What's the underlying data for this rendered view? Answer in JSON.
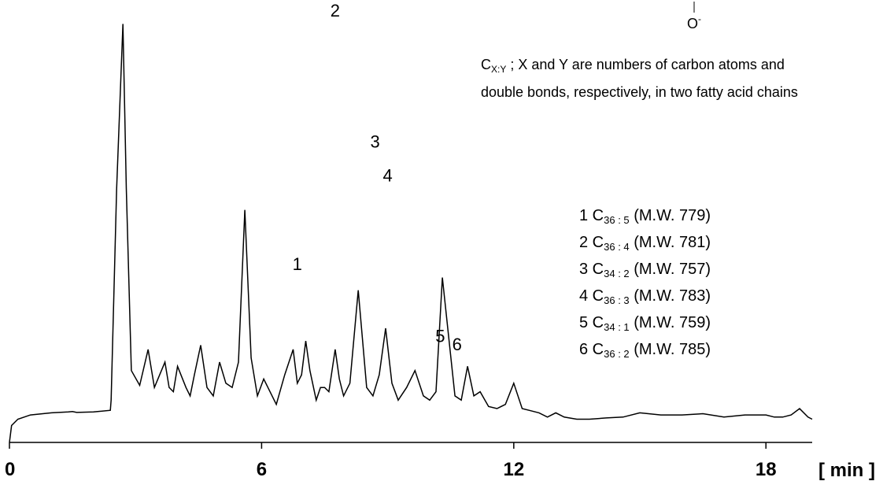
{
  "chart_data": {
    "type": "line",
    "title": "",
    "xlabel": "",
    "ylabel": "",
    "x_unit": "[ min ]",
    "xlim": [
      0,
      20
    ],
    "ylim": [
      0,
      100
    ],
    "xticks": [
      "0",
      "6",
      "12",
      "18"
    ],
    "grid": false,
    "series": [
      {
        "values_note_free": true,
        "x": [
          0.0,
          0.05,
          0.2,
          0.5,
          1.0,
          1.4,
          1.5,
          1.6,
          2.0,
          2.4,
          2.42,
          2.55,
          2.7,
          2.78,
          2.9,
          3.1,
          3.3,
          3.45,
          3.7,
          3.8,
          3.9,
          4.0,
          4.2,
          4.3,
          4.4,
          4.55,
          4.7,
          4.85,
          5.0,
          5.15,
          5.3,
          5.45,
          5.6,
          5.75,
          5.9,
          6.05,
          6.2,
          6.35,
          6.55,
          6.75,
          6.85,
          6.95,
          7.05,
          7.15,
          7.3,
          7.4,
          7.5,
          7.6,
          7.75,
          7.85,
          7.95,
          8.1,
          8.3,
          8.5,
          8.65,
          8.8,
          8.95,
          9.1,
          9.25,
          9.45,
          9.65,
          9.85,
          10.0,
          10.15,
          10.3,
          10.45,
          10.6,
          10.75,
          10.9,
          11.05,
          11.2,
          11.4,
          11.6,
          11.8,
          12.0,
          12.2,
          12.4,
          12.6,
          12.8,
          13.0,
          13.2,
          13.5,
          13.8,
          14.2,
          14.6,
          15.0,
          15.5,
          16.0,
          16.5,
          17.0,
          17.5,
          18.0,
          18.2,
          18.4,
          18.6,
          18.8,
          19.0,
          19.1
        ],
        "y": [
          0.0,
          4.0,
          5.5,
          6.5,
          7.0,
          7.2,
          7.3,
          7.1,
          7.2,
          7.6,
          10.0,
          60.0,
          99.0,
          60.0,
          17.0,
          13.5,
          22.0,
          13.0,
          19.0,
          13.0,
          12.0,
          18.0,
          13.0,
          11.0,
          16.0,
          23.0,
          13.0,
          11.0,
          19.0,
          14.0,
          13.0,
          19.0,
          55.0,
          20.0,
          11.0,
          15.0,
          12.0,
          9.0,
          16.0,
          22.0,
          14.0,
          16.0,
          24.0,
          17.0,
          10.0,
          13.0,
          13.0,
          12.0,
          22.0,
          15.0,
          11.0,
          14.0,
          36.0,
          13.0,
          11.0,
          16.0,
          27.0,
          14.0,
          10.0,
          13.0,
          17.0,
          11.0,
          10.0,
          12.0,
          39.0,
          25.0,
          11.0,
          10.0,
          18.0,
          11.0,
          12.0,
          8.5,
          8.0,
          9.0,
          14.0,
          8.0,
          7.5,
          7.0,
          6.0,
          7.0,
          6.0,
          5.5,
          5.5,
          5.8,
          6.0,
          7.0,
          6.5,
          6.5,
          6.8,
          6.0,
          6.5,
          6.5,
          6.0,
          6.0,
          6.5,
          8.0,
          6.0,
          5.5
        ]
      }
    ],
    "peak_labels": [
      "1",
      "2",
      "3",
      "4",
      "5",
      "6"
    ],
    "legend": [
      {
        "prefix": "1 C",
        "sub": "36 : 5",
        "suffix": " (M.W. 779)"
      },
      {
        "prefix": "2 C",
        "sub": "36 : 4",
        "suffix": " (M.W. 781)"
      },
      {
        "prefix": "3 C",
        "sub": "34 : 2",
        "suffix": " (M.W. 757)"
      },
      {
        "prefix": "4 C",
        "sub": "36 : 3",
        "suffix": " (M.W. 783)"
      },
      {
        "prefix": "5 C",
        "sub": "34 : 1",
        "suffix": " (M.W. 759)"
      },
      {
        "prefix": "6 C",
        "sub": "36 : 2",
        "suffix": " (M.W. 785)"
      }
    ],
    "note_line1_pre": "C",
    "note_line1_sub": "X:Y",
    "note_line1_post": " ; X and Y are numbers of carbon atoms and",
    "note_line2": "double bonds, respectively, in two fatty acid chains",
    "structure_fragment": "O",
    "structure_charge": "-"
  }
}
